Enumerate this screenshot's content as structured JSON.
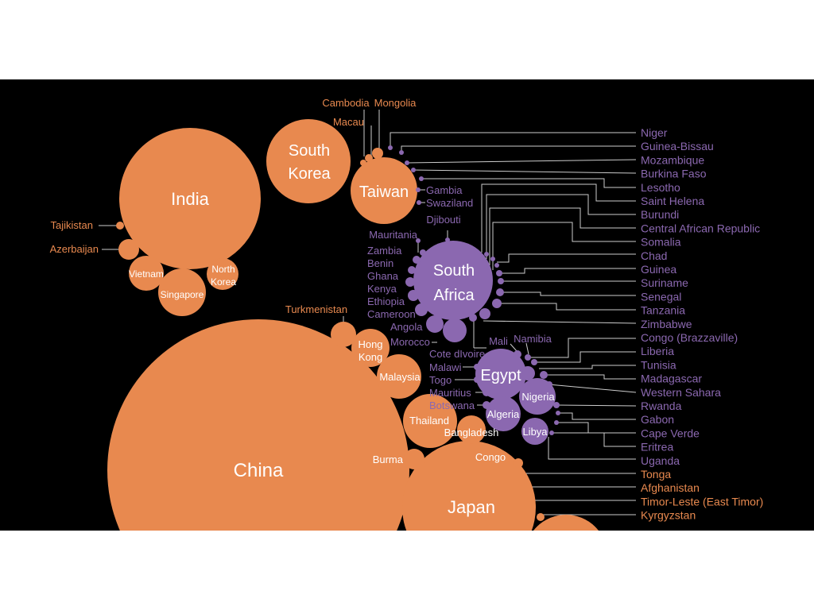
{
  "chart_data": {
    "type": "bubble",
    "title": "",
    "colors": {
      "asia": "#e8894f",
      "africa": "#8b68b0",
      "background": "#000000",
      "label_on_bubble": "#ffffff",
      "leader": "#cccccc"
    },
    "asia": [
      "China",
      "Japan",
      "India",
      "South Korea",
      "Taiwan",
      "Singapore",
      "Vietnam",
      "North Korea",
      "Hong Kong",
      "Malaysia",
      "Thailand",
      "Bangladesh",
      "Burma",
      "Turkmenistan",
      "Azerbaijan",
      "Tajikistan",
      "Cambodia",
      "Macau",
      "Mongolia",
      "Tonga",
      "Afghanistan",
      "Timor-Leste (East Timor)",
      "Kyrgyzstan"
    ],
    "africa": [
      "South Africa",
      "Egypt",
      "Nigeria",
      "Algeria",
      "Libya",
      "Morocco",
      "Angola",
      "Cameroon",
      "Ethiopia",
      "Kenya",
      "Ghana",
      "Benin",
      "Zambia",
      "Mauritania",
      "Djibouti",
      "Swaziland",
      "Gambia",
      "Niger",
      "Guinea-Bissau",
      "Mozambique",
      "Burkina Faso",
      "Lesotho",
      "Saint Helena",
      "Burundi",
      "Central African Republic",
      "Somalia",
      "Chad",
      "Guinea",
      "Suriname",
      "Senegal",
      "Tanzania",
      "Zimbabwe",
      "Congo (Brazzaville)",
      "Liberia",
      "Tunisia",
      "Madagascar",
      "Western Sahara",
      "Rwanda",
      "Gabon",
      "Cape Verde",
      "Eritrea",
      "Uganda",
      "Mali",
      "Namibia",
      "Cote dIvoire",
      "Malawi",
      "Togo",
      "Mauritius",
      "Botswana",
      "Congo"
    ]
  },
  "bubble_labels": {
    "china": "China",
    "japan": "Japan",
    "india": "India",
    "south_korea_1": "South",
    "south_korea_2": "Korea",
    "taiwan": "Taiwan",
    "singapore": "Singapore",
    "vietnam": "Vietnam",
    "north_korea_1": "North",
    "north_korea_2": "Korea",
    "hong_kong_1": "Hong",
    "hong_kong_2": "Kong",
    "malaysia": "Malaysia",
    "thailand": "Thailand",
    "bangladesh": "Bangladesh",
    "south_africa_1": "South",
    "south_africa_2": "Africa",
    "egypt": "Egypt",
    "nigeria": "Nigeria",
    "algeria": "Algeria",
    "libya": "Libya"
  },
  "side_labels": {
    "cambodia": "Cambodia",
    "mongolia": "Mongolia",
    "macau": "Macau",
    "tajikistan": "Tajikistan",
    "azerbaijan": "Azerbaijan",
    "turkmenistan": "Turkmenistan",
    "burma": "Burma",
    "congo": "Congo",
    "gambia": "Gambia",
    "swaziland": "Swaziland",
    "djibouti": "Djibouti",
    "mauritania": "Mauritania",
    "zambia": "Zambia",
    "benin": "Benin",
    "ghana": "Ghana",
    "kenya": "Kenya",
    "ethiopia": "Ethiopia",
    "cameroon": "Cameroon",
    "angola": "Angola",
    "morocco": "Morocco",
    "cote_divoire": "Cote dIvoire",
    "malawi": "Malawi",
    "togo": "Togo",
    "mauritius": "Mauritius",
    "botswana": "Botswana",
    "mali": "Mali",
    "namibia": "Namibia"
  },
  "right_list": [
    {
      "label": "Niger",
      "group": "africa"
    },
    {
      "label": "Guinea-Bissau",
      "group": "africa"
    },
    {
      "label": "Mozambique",
      "group": "africa"
    },
    {
      "label": "Burkina Faso",
      "group": "africa"
    },
    {
      "label": "Lesotho",
      "group": "africa"
    },
    {
      "label": "Saint Helena",
      "group": "africa"
    },
    {
      "label": "Burundi",
      "group": "africa"
    },
    {
      "label": "Central African Republic",
      "group": "africa"
    },
    {
      "label": "Somalia",
      "group": "africa"
    },
    {
      "label": "Chad",
      "group": "africa"
    },
    {
      "label": "Guinea",
      "group": "africa"
    },
    {
      "label": "Suriname",
      "group": "africa"
    },
    {
      "label": "Senegal",
      "group": "africa"
    },
    {
      "label": "Tanzania",
      "group": "africa"
    },
    {
      "label": "Zimbabwe",
      "group": "africa"
    },
    {
      "label": "Congo (Brazzaville)",
      "group": "africa"
    },
    {
      "label": "Liberia",
      "group": "africa"
    },
    {
      "label": "Tunisia",
      "group": "africa"
    },
    {
      "label": "Madagascar",
      "group": "africa"
    },
    {
      "label": "Western Sahara",
      "group": "africa"
    },
    {
      "label": "Rwanda",
      "group": "africa"
    },
    {
      "label": "Gabon",
      "group": "africa"
    },
    {
      "label": "Cape Verde",
      "group": "africa"
    },
    {
      "label": "Eritrea",
      "group": "africa"
    },
    {
      "label": "Uganda",
      "group": "africa"
    },
    {
      "label": "Tonga",
      "group": "asia"
    },
    {
      "label": "Afghanistan",
      "group": "asia"
    },
    {
      "label": "Timor-Leste (East Timor)",
      "group": "asia"
    },
    {
      "label": "Kyrgyzstan",
      "group": "asia"
    }
  ]
}
